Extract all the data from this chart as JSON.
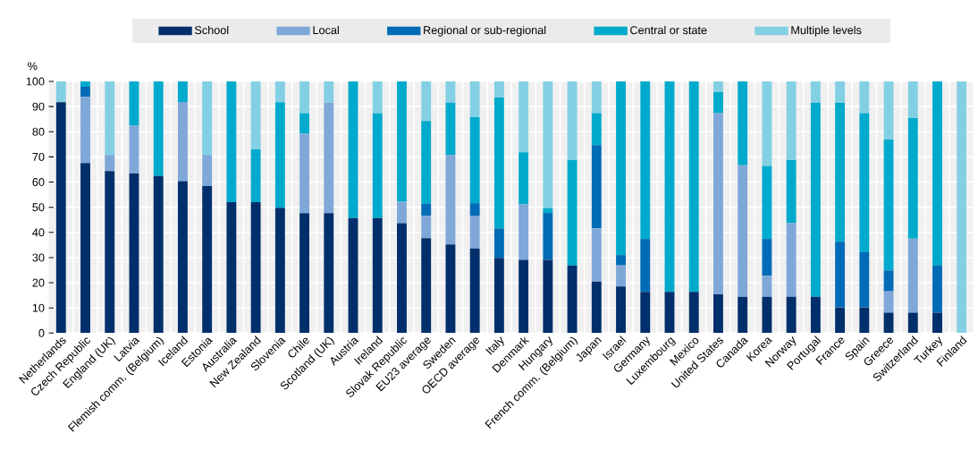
{
  "chart_data": {
    "type": "bar",
    "stacked": true,
    "ylabel": "%",
    "ylim": [
      0,
      100
    ],
    "yticks": [
      0,
      10,
      20,
      30,
      40,
      50,
      60,
      70,
      80,
      90,
      100
    ],
    "grid": true,
    "legend": "top",
    "categories": [
      "Netherlands",
      "Czech Republic",
      "England (UK)",
      "Latvia",
      "Flemish comm. (Belgium)",
      "Iceland",
      "Estonia",
      "Australia",
      "New Zealand",
      "Slovenia",
      "Chile",
      "Scotland (UK)",
      "Austria",
      "Ireland",
      "Slovak Republic",
      "EU23 average",
      "Sweden",
      "OECD average",
      "Italy",
      "Denmark",
      "Hungary",
      "French comm. (Belgium)",
      "Japan",
      "Israel",
      "Germany",
      "Luxembourg",
      "Mexico",
      "United States",
      "Canada",
      "Korea",
      "Norway",
      "Portugal",
      "France",
      "Spain",
      "Greece",
      "Switzerland",
      "Turkey",
      "Finland"
    ],
    "series": [
      {
        "name": "School",
        "color": "#002f6c",
        "values": [
          91.7,
          67.6,
          64.4,
          63.5,
          62.4,
          60.4,
          58.4,
          52.0,
          52.0,
          49.8,
          47.7,
          47.7,
          45.7,
          45.7,
          43.7,
          37.7,
          35.2,
          33.6,
          29.9,
          29.1,
          29.1,
          26.9,
          20.5,
          18.5,
          16.4,
          16.4,
          16.4,
          15.4,
          14.4,
          14.4,
          14.4,
          14.4,
          10.2,
          10.2,
          8.1,
          8.1,
          8.1,
          0
        ]
      },
      {
        "name": "Local",
        "color": "#7fa8d9",
        "values": [
          0,
          26.2,
          6.4,
          18.9,
          0,
          31.4,
          12.4,
          0,
          0,
          0,
          31.5,
          43.9,
          0,
          0,
          8.5,
          8.9,
          35.6,
          12.9,
          0,
          22.0,
          0,
          0,
          21.1,
          8.4,
          0,
          0,
          0,
          72.0,
          52.3,
          8.4,
          29.3,
          0,
          0,
          0,
          8.5,
          29.4,
          0,
          0
        ]
      },
      {
        "name": "Regional or sub-regional",
        "color": "#006bb6",
        "values": [
          0,
          4.1,
          0,
          0,
          0,
          0,
          0,
          0,
          0,
          0,
          0,
          0,
          0,
          0,
          0,
          4.8,
          0,
          5.1,
          11.7,
          0,
          18.6,
          0,
          33.1,
          4.1,
          21.0,
          0,
          0,
          0,
          0,
          14.6,
          0,
          0,
          26.1,
          21.9,
          8.3,
          0,
          18.8,
          0
        ]
      },
      {
        "name": "Central or state",
        "color": "#00aacc",
        "values": [
          0,
          2.1,
          0,
          17.6,
          37.6,
          8.2,
          0,
          48.0,
          21.0,
          41.9,
          8.2,
          0,
          54.3,
          41.7,
          47.8,
          32.9,
          20.8,
          34.2,
          52.0,
          20.7,
          2.0,
          41.8,
          12.7,
          69.0,
          62.6,
          83.6,
          83.6,
          8.3,
          33.3,
          29.0,
          25.0,
          77.2,
          55.3,
          55.3,
          52.0,
          47.9,
          73.1,
          0
        ]
      },
      {
        "name": "Multiple levels",
        "color": "#83d0e4",
        "values": [
          8.3,
          0,
          29.2,
          0,
          0,
          0,
          29.2,
          0,
          27.0,
          8.3,
          12.6,
          8.4,
          0,
          12.6,
          0,
          15.7,
          8.4,
          14.2,
          6.4,
          28.2,
          50.3,
          31.3,
          12.6,
          0,
          0,
          0,
          0,
          4.3,
          0,
          33.6,
          31.3,
          8.4,
          8.4,
          12.6,
          23.1,
          14.6,
          0,
          100
        ]
      }
    ]
  }
}
